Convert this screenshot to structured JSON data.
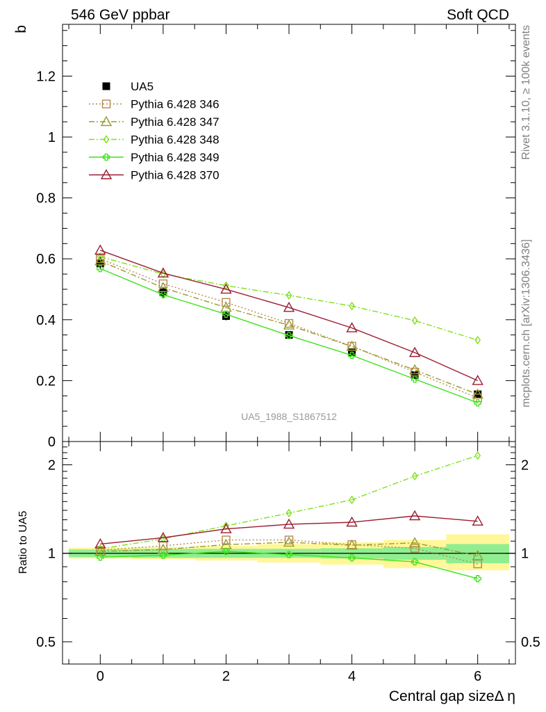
{
  "header": {
    "left": "546 GeV ppbar",
    "right": "Soft QCD"
  },
  "side_labels": {
    "top": "Rivet 3.1.10, ≥ 100k events",
    "bottom": "mcplots.cern.ch [arXiv:1306.3436]"
  },
  "analysis_label": "UA5_1988_S1867512",
  "chart_data": [
    {
      "type": "line",
      "panel": "main",
      "ylabel": "b",
      "xlabel": "",
      "xlim": [
        -0.6,
        6.6
      ],
      "ylim": [
        0,
        1.37
      ],
      "yticks": [
        0,
        0.2,
        0.4,
        0.6,
        0.8,
        1,
        1.2
      ],
      "ytick_labels": [
        "0",
        "0.2",
        "0.4",
        "0.6",
        "0.8",
        "1",
        "1.2"
      ],
      "legend_position": "top-left",
      "x": [
        0,
        1,
        2,
        3,
        4,
        5,
        6
      ],
      "series": [
        {
          "name": "UA5",
          "kind": "data",
          "marker": "filled-square",
          "color": "#000000",
          "values": [
            0.585,
            0.49,
            0.412,
            0.35,
            0.293,
            0.218,
            0.155
          ],
          "errors": [
            0.02,
            0.018,
            0.014,
            0.012,
            0.011,
            0.011,
            0.012
          ]
        },
        {
          "name": "Pythia 6.428 346",
          "marker": "open-square",
          "dash": "dotted",
          "color": "#b5884f",
          "values": [
            0.6,
            0.518,
            0.457,
            0.388,
            0.313,
            0.228,
            0.143
          ]
        },
        {
          "name": "Pythia 6.428 347",
          "marker": "open-triangle",
          "dash": "dashdot",
          "color": "#9a9a2e",
          "values": [
            0.593,
            0.505,
            0.44,
            0.382,
            0.312,
            0.235,
            0.155
          ]
        },
        {
          "name": "Pythia 6.428 348",
          "marker": "open-diamond",
          "dash": "dashdot",
          "color": "#7ee01a",
          "values": [
            0.607,
            0.55,
            0.512,
            0.48,
            0.445,
            0.397,
            0.333
          ]
        },
        {
          "name": "Pythia 6.428 349",
          "marker": "open-cross",
          "dash": "solid",
          "color": "#3ee21a",
          "values": [
            0.568,
            0.482,
            0.418,
            0.348,
            0.283,
            0.205,
            0.127
          ]
        },
        {
          "name": "Pythia 6.428 370",
          "marker": "open-triangle",
          "dash": "solid",
          "color": "#9b1b30",
          "values": [
            0.628,
            0.553,
            0.5,
            0.44,
            0.373,
            0.292,
            0.2
          ]
        }
      ]
    },
    {
      "type": "line",
      "panel": "ratio",
      "ylabel": "Ratio to UA5",
      "xlabel": "Central gap sizeΔ η",
      "xlim": [
        -0.6,
        6.6
      ],
      "ylim": [
        0.42,
        2.4
      ],
      "y_scale": "log",
      "yticks": [
        0.5,
        1,
        2
      ],
      "ytick_labels": [
        "0.5",
        "1",
        "2"
      ],
      "xticks": [
        0,
        2,
        4,
        6
      ],
      "xtick_labels": [
        "0",
        "2",
        "4",
        "6"
      ],
      "x": [
        0,
        1,
        2,
        3,
        4,
        5,
        6
      ],
      "bands": [
        {
          "name": "stat",
          "color": "#90ee90",
          "lower": [
            0.97,
            0.965,
            0.965,
            0.965,
            0.96,
            0.95,
            0.925
          ],
          "upper": [
            1.03,
            1.035,
            1.035,
            1.035,
            1.04,
            1.05,
            1.075
          ]
        },
        {
          "name": "syst",
          "color": "#fff799",
          "lower": [
            0.96,
            0.955,
            0.945,
            0.93,
            0.915,
            0.89,
            0.875
          ],
          "upper": [
            1.045,
            1.05,
            1.06,
            1.075,
            1.09,
            1.11,
            1.16
          ]
        }
      ],
      "series": [
        {
          "name": "Pythia 6.428 346",
          "values": [
            1.025,
            1.06,
            1.11,
            1.11,
            1.07,
            1.04,
            0.92
          ]
        },
        {
          "name": "Pythia 6.428 347",
          "values": [
            1.015,
            1.03,
            1.07,
            1.09,
            1.065,
            1.085,
            0.98
          ]
        },
        {
          "name": "Pythia 6.428 348",
          "values": [
            1.035,
            1.12,
            1.24,
            1.37,
            1.52,
            1.83,
            2.15
          ]
        },
        {
          "name": "Pythia 6.428 349",
          "values": [
            0.97,
            0.985,
            1.015,
            0.99,
            0.965,
            0.935,
            0.82
          ]
        },
        {
          "name": "Pythia 6.428 370",
          "values": [
            1.075,
            1.13,
            1.21,
            1.255,
            1.275,
            1.34,
            1.285
          ]
        }
      ]
    }
  ]
}
